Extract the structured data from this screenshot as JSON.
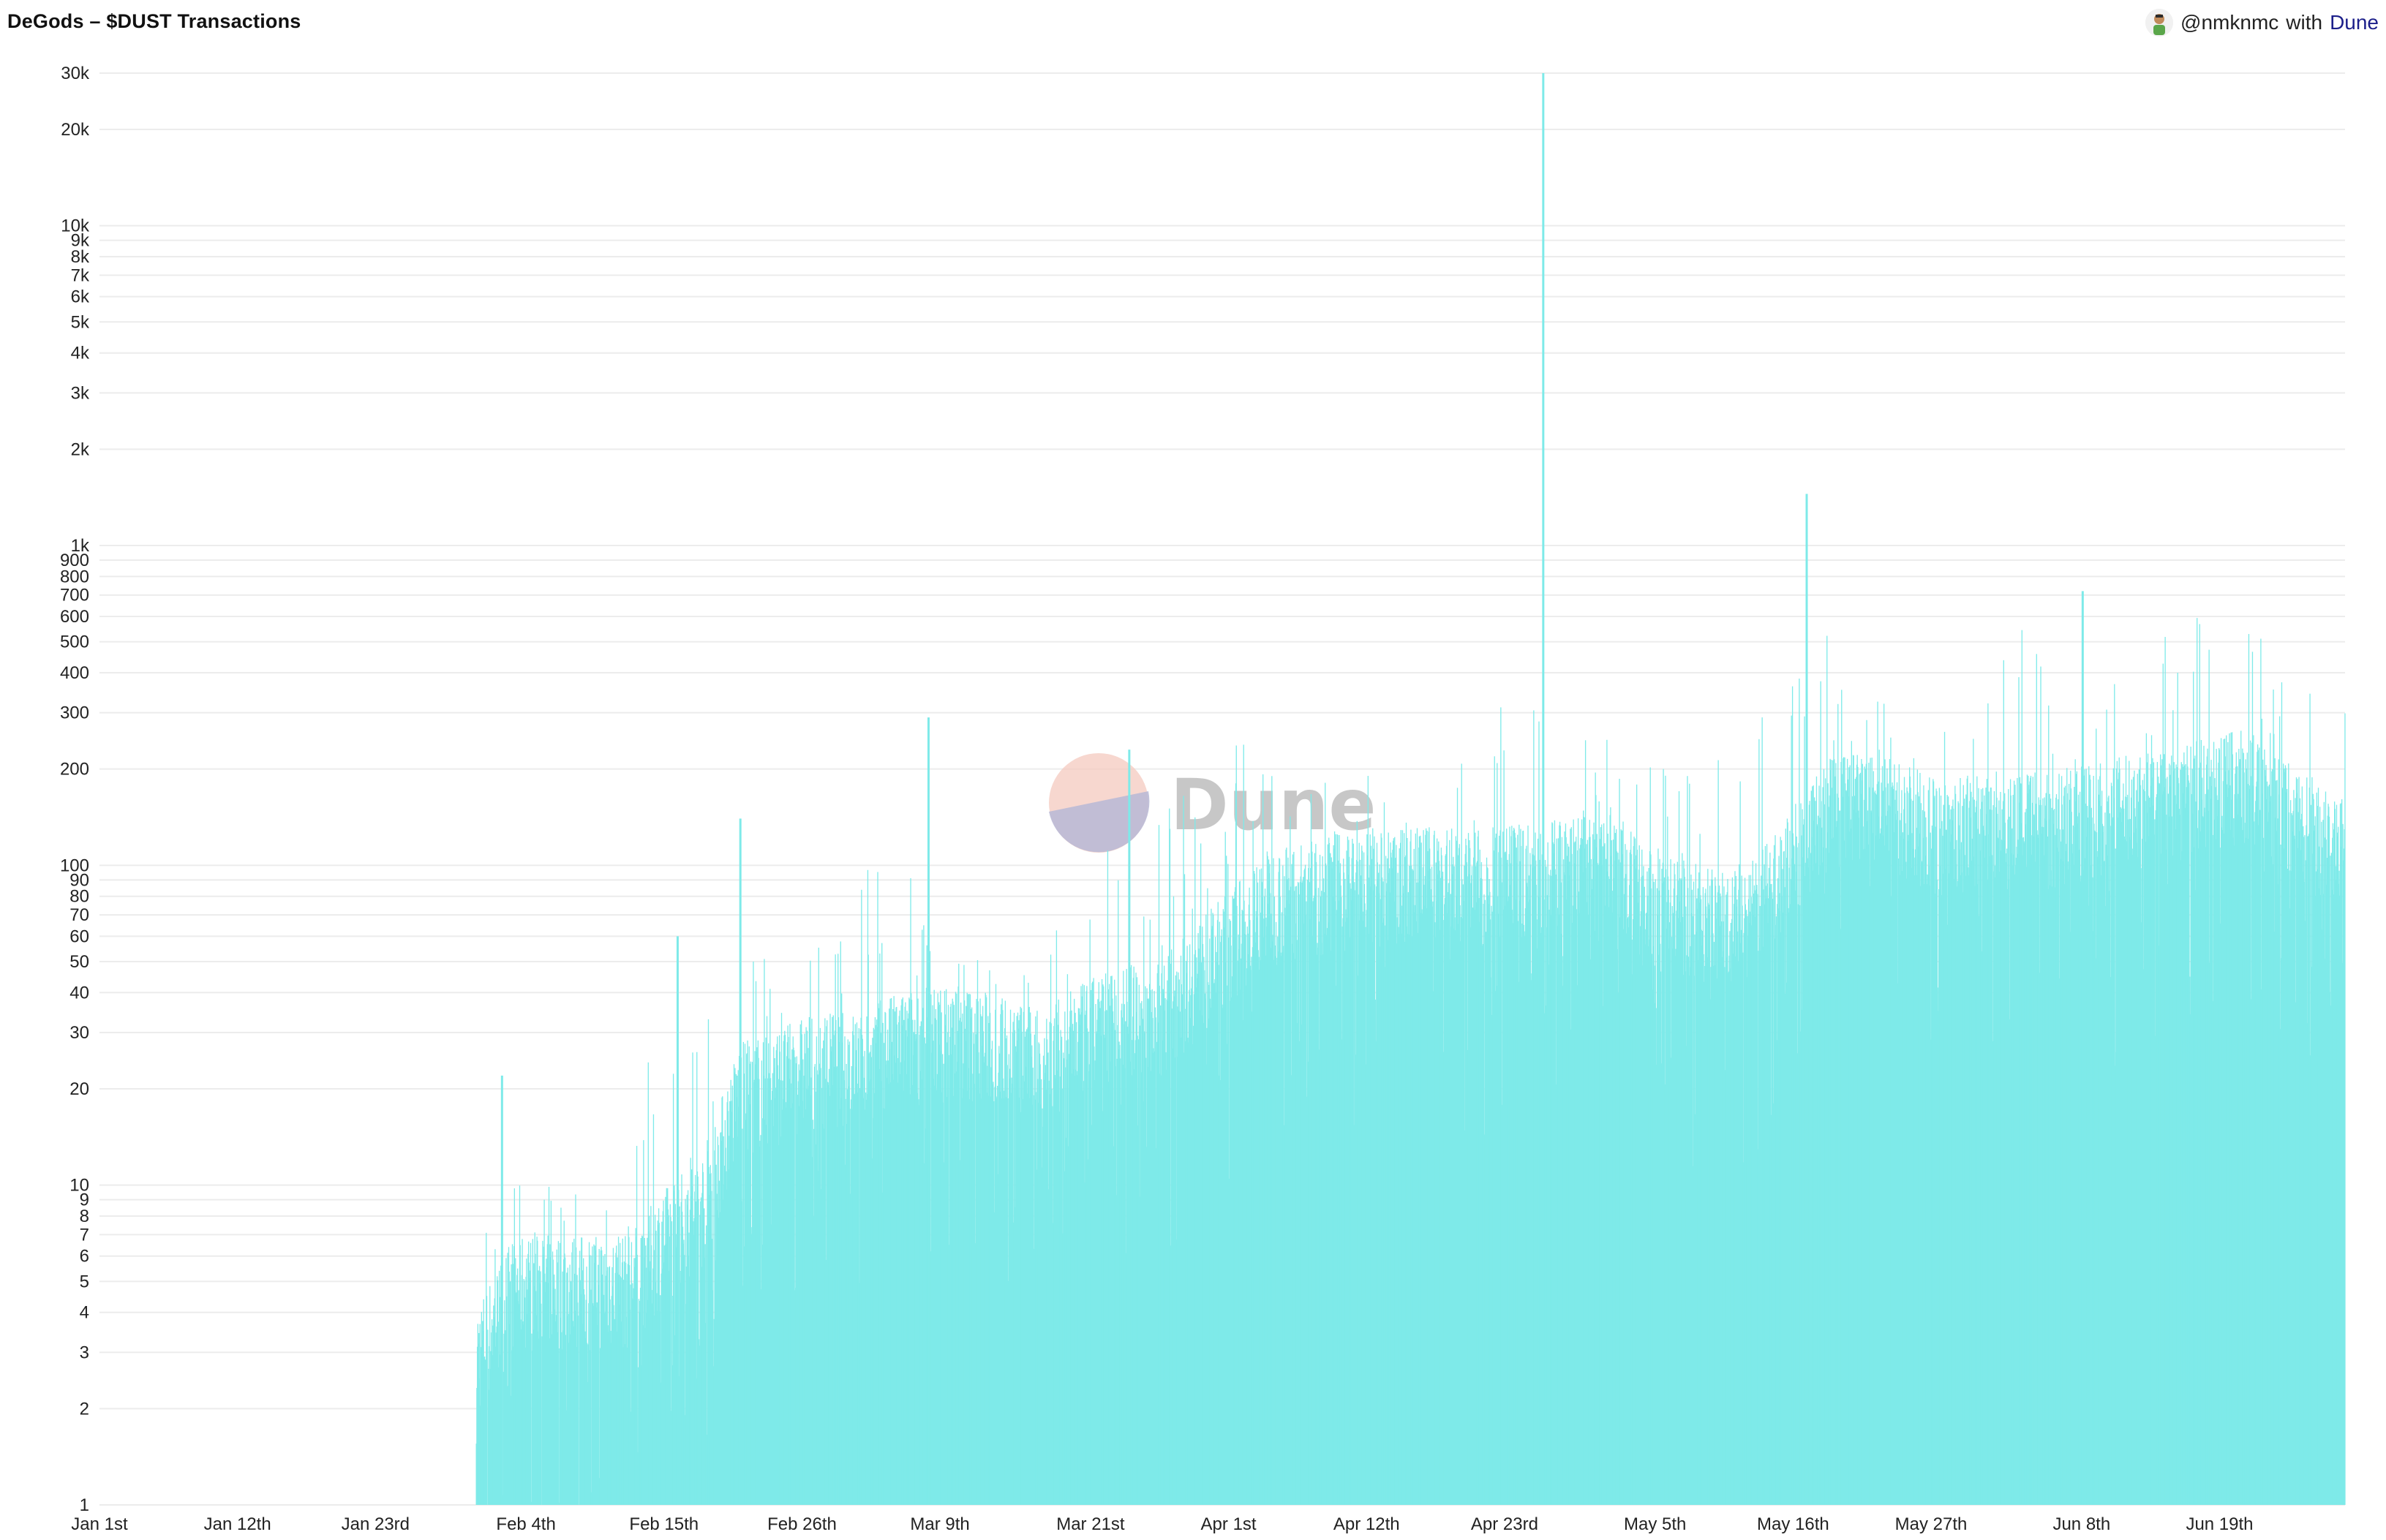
{
  "header": {
    "title": "DeGods – $DUST Transactions",
    "credit_handle": "@nmknmc",
    "credit_with": "with",
    "credit_brand": "Dune"
  },
  "watermark": {
    "text": "Dune"
  },
  "colors": {
    "bars": "#7eeae9",
    "grid": "#ececec",
    "brand_link": "#1c1f8a"
  },
  "chart_data": {
    "type": "bar",
    "title": "DeGods – $DUST Transactions",
    "xlabel": "",
    "ylabel": "",
    "y_scale": "log",
    "ylim": [
      1,
      30000
    ],
    "x_range": [
      "2022-01-01",
      "2022-06-29"
    ],
    "grid": "horizontal",
    "legend": "none",
    "y_tick_labels": [
      "1",
      "2",
      "3",
      "4",
      "5",
      "6",
      "7",
      "8",
      "9",
      "10",
      "20",
      "30",
      "40",
      "50",
      "60",
      "70",
      "80",
      "90",
      "100",
      "200",
      "300",
      "400",
      "500",
      "600",
      "700",
      "800",
      "900",
      "1k",
      "2k",
      "3k",
      "4k",
      "5k",
      "6k",
      "7k",
      "8k",
      "9k",
      "10k",
      "20k",
      "30k"
    ],
    "y_tick_values": [
      1,
      2,
      3,
      4,
      5,
      6,
      7,
      8,
      9,
      10,
      20,
      30,
      40,
      50,
      60,
      70,
      80,
      90,
      100,
      200,
      300,
      400,
      500,
      600,
      700,
      800,
      900,
      1000,
      2000,
      3000,
      4000,
      5000,
      6000,
      7000,
      8000,
      9000,
      10000,
      20000,
      30000
    ],
    "x_tick_labels": [
      "Jan 1st",
      "Jan 12th",
      "Jan 23rd",
      "Feb 4th",
      "Feb 15th",
      "Feb 26th",
      "Mar 9th",
      "Mar 21st",
      "Apr 1st",
      "Apr 12th",
      "Apr 23rd",
      "May 5th",
      "May 16th",
      "May 27th",
      "Jun 8th",
      "Jun 19th"
    ],
    "x_tick_dates": [
      "2022-01-01",
      "2022-01-12",
      "2022-01-23",
      "2022-02-04",
      "2022-02-15",
      "2022-02-26",
      "2022-03-09",
      "2022-03-21",
      "2022-04-01",
      "2022-04-12",
      "2022-04-23",
      "2022-05-05",
      "2022-05-16",
      "2022-05-27",
      "2022-06-08",
      "2022-06-19"
    ],
    "series": [
      {
        "level_dates": [
          "2022-01-31",
          "2022-02-03",
          "2022-02-06",
          "2022-02-09",
          "2022-02-12",
          "2022-02-15",
          "2022-02-18",
          "2022-02-21",
          "2022-02-24",
          "2022-02-27",
          "2022-03-02",
          "2022-03-05",
          "2022-03-08",
          "2022-03-11",
          "2022-03-14",
          "2022-03-17",
          "2022-03-20",
          "2022-03-23",
          "2022-03-26",
          "2022-03-29",
          "2022-04-01",
          "2022-04-04",
          "2022-04-07",
          "2022-04-10",
          "2022-04-13",
          "2022-04-16",
          "2022-04-19",
          "2022-04-22",
          "2022-04-25",
          "2022-04-28",
          "2022-05-01",
          "2022-05-04",
          "2022-05-07",
          "2022-05-10",
          "2022-05-13",
          "2022-05-16",
          "2022-05-19",
          "2022-05-22",
          "2022-05-25",
          "2022-05-28",
          "2022-05-31",
          "2022-06-03",
          "2022-06-06",
          "2022-06-09",
          "2022-06-12",
          "2022-06-15",
          "2022-06-18",
          "2022-06-21",
          "2022-06-24",
          "2022-06-27",
          "2022-06-29"
        ],
        "typical": [
          3,
          5,
          5,
          5,
          5,
          7,
          9,
          20,
          22,
          25,
          25,
          28,
          30,
          30,
          28,
          25,
          30,
          35,
          35,
          45,
          60,
          80,
          85,
          90,
          90,
          95,
          95,
          90,
          100,
          100,
          120,
          80,
          75,
          70,
          75,
          110,
          160,
          160,
          150,
          130,
          140,
          140,
          140,
          150,
          160,
          170,
          180,
          190,
          160,
          130,
          120
        ],
        "peak": [
          10,
          10,
          10,
          10,
          12,
          50,
          140,
          55,
          50,
          55,
          60,
          280,
          60,
          50,
          60,
          80,
          150,
          130,
          200,
          220,
          250,
          230,
          200,
          190,
          200,
          180,
          220,
          200,
          30000,
          250,
          250,
          220,
          200,
          250,
          300,
          1500,
          500,
          380,
          350,
          300,
          350,
          700,
          400,
          380,
          420,
          600,
          650,
          550,
          500,
          350,
          300
        ]
      }
    ],
    "spikes": [
      {
        "date": "2022-02-02",
        "value": 22
      },
      {
        "date": "2022-02-16",
        "value": 60
      },
      {
        "date": "2022-02-21",
        "value": 140
      },
      {
        "date": "2022-03-08",
        "value": 290
      },
      {
        "date": "2022-03-24",
        "value": 230
      },
      {
        "date": "2022-04-26",
        "value": 30000
      },
      {
        "date": "2022-05-17",
        "value": 1450
      },
      {
        "date": "2022-06-08",
        "value": 720
      }
    ]
  }
}
